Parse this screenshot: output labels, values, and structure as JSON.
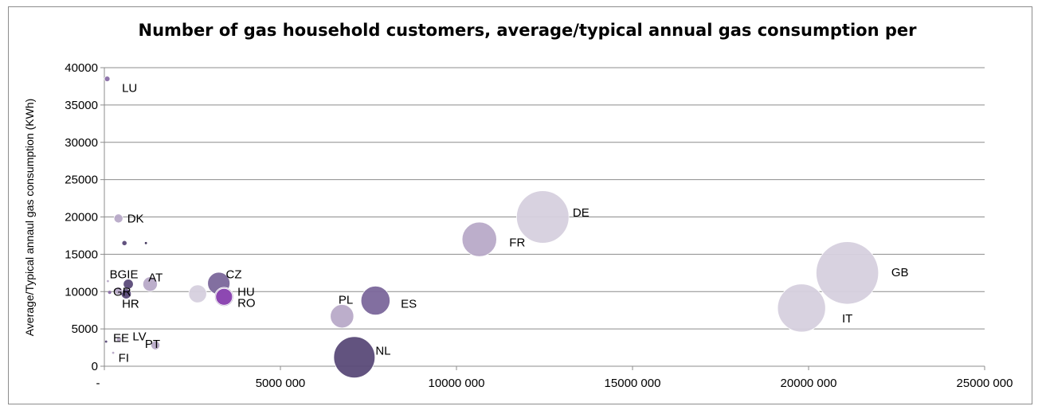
{
  "chart_data": {
    "type": "scatter",
    "subtype": "bubble",
    "title": "Number of gas household customers, average/typical annual gas consumption per",
    "xlabel": "",
    "ylabel": "Average/Typical annaul gas consumption (KWh)",
    "xlim": [
      0,
      25000000
    ],
    "ylim": [
      0,
      40000
    ],
    "x_ticks": [
      0,
      5000000,
      10000000,
      15000000,
      20000000,
      25000000
    ],
    "x_tick_labels": [
      "-",
      "5000 000",
      "10000 000",
      "15000 000",
      "20000 000",
      "25000 000"
    ],
    "y_ticks": [
      0,
      5000,
      10000,
      15000,
      20000,
      25000,
      30000,
      35000,
      40000
    ],
    "y_tick_labels": [
      "0",
      "5000",
      "10000",
      "15000",
      "20000",
      "25000",
      "30000",
      "35000",
      "40000"
    ],
    "grid": "horizontal",
    "points": [
      {
        "label": "LU",
        "x": 80000,
        "y": 38500,
        "size": 0.25,
        "color": "#8a6fa8"
      },
      {
        "label": "DK",
        "x": 400000,
        "y": 19800,
        "size": 0.4,
        "color": "#b8aac8"
      },
      {
        "label": "",
        "x": 570000,
        "y": 16500,
        "size": 0.2,
        "color": "#5a4a78"
      },
      {
        "label": "",
        "x": 1180000,
        "y": 16500,
        "size": 0.1,
        "color": "#3a2e55"
      },
      {
        "label": "BG",
        "x": 100000,
        "y": 11400,
        "size": 0.1,
        "color": "#b8aac8"
      },
      {
        "label": "IE",
        "x": 680000,
        "y": 11000,
        "size": 0.45,
        "color": "#5a4a78"
      },
      {
        "label": "AT",
        "x": 1300000,
        "y": 11000,
        "size": 0.65,
        "color": "#b8aac8"
      },
      {
        "label": "GR",
        "x": 150000,
        "y": 9900,
        "size": 0.15,
        "color": "#8a6fa8"
      },
      {
        "label": "",
        "x": 400000,
        "y": 10100,
        "size": 0.35,
        "color": "#b8aac8"
      },
      {
        "label": "HR",
        "x": 620000,
        "y": 9700,
        "size": 0.45,
        "color": "#5a4a78"
      },
      {
        "label": "",
        "x": 2650000,
        "y": 9700,
        "size": 0.8,
        "color": "#d6d0de"
      },
      {
        "label": "CZ",
        "x": 3250000,
        "y": 11100,
        "size": 1.0,
        "color": "#7b679b"
      },
      {
        "label": "HU",
        "x": 3400000,
        "y": 9300,
        "size": 0.85,
        "color": "#b8aac8"
      },
      {
        "label": "RO",
        "x": 3400000,
        "y": 9300,
        "size": 0.75,
        "color": "#8a42b0"
      },
      {
        "label": "EE",
        "x": 50000,
        "y": 3300,
        "size": 0.1,
        "color": "#5a4a78"
      },
      {
        "label": "LV",
        "x": 420000,
        "y": 3600,
        "size": 0.2,
        "color": "#b8aac8"
      },
      {
        "label": "PT",
        "x": 1450000,
        "y": 2800,
        "size": 0.4,
        "color": "#b8aac8"
      },
      {
        "label": "FI",
        "x": 250000,
        "y": 1800,
        "size": 0.1,
        "color": "#b8aac8"
      },
      {
        "label": "PL",
        "x": 6750000,
        "y": 6700,
        "size": 1.05,
        "color": "#b8aac8"
      },
      {
        "label": "ES",
        "x": 7700000,
        "y": 8800,
        "size": 1.3,
        "color": "#7b679b"
      },
      {
        "label": "NL",
        "x": 7100000,
        "y": 1200,
        "size": 1.85,
        "color": "#5a4a78"
      },
      {
        "label": "FR",
        "x": 10650000,
        "y": 17000,
        "size": 1.55,
        "color": "#b8aac8"
      },
      {
        "label": "DE",
        "x": 12450000,
        "y": 20000,
        "size": 2.35,
        "color": "#d6d0de"
      },
      {
        "label": "IT",
        "x": 19800000,
        "y": 7800,
        "size": 2.15,
        "color": "#d6d0de"
      },
      {
        "label": "GB",
        "x": 21100000,
        "y": 12500,
        "size": 2.8,
        "color": "#d6d0de"
      }
    ],
    "labels": [
      {
        "text": "LU",
        "x": 500000,
        "y": 37300
      },
      {
        "text": "DK",
        "x": 650000,
        "y": 19800
      },
      {
        "text": "BGIE",
        "x": 150000,
        "y": 12300
      },
      {
        "text": "AT",
        "x": 1250000,
        "y": 11900
      },
      {
        "text": "GR",
        "x": 250000,
        "y": 10000
      },
      {
        "text": "HR",
        "x": 500000,
        "y": 8400
      },
      {
        "text": "CZ",
        "x": 3450000,
        "y": 12300
      },
      {
        "text": "HU",
        "x": 3780000,
        "y": 10000
      },
      {
        "text": "RO",
        "x": 3780000,
        "y": 8500
      },
      {
        "text": "EE",
        "x": 250000,
        "y": 3800
      },
      {
        "text": "LV",
        "x": 800000,
        "y": 4000
      },
      {
        "text": "PT",
        "x": 1150000,
        "y": 3000
      },
      {
        "text": "FI",
        "x": 400000,
        "y": 1100
      },
      {
        "text": "PL",
        "x": 6650000,
        "y": 8900
      },
      {
        "text": "ES",
        "x": 8420000,
        "y": 8400
      },
      {
        "text": "NL",
        "x": 7700000,
        "y": 2100
      },
      {
        "text": "FR",
        "x": 11500000,
        "y": 16600
      },
      {
        "text": "DE",
        "x": 13300000,
        "y": 20600
      },
      {
        "text": "IT",
        "x": 20950000,
        "y": 6400
      },
      {
        "text": "GB",
        "x": 22350000,
        "y": 12600
      }
    ]
  }
}
